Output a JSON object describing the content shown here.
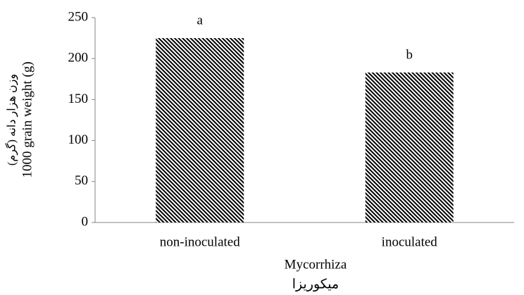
{
  "chart_data": {
    "type": "bar",
    "categories": [
      "non-inoculated",
      "inoculated"
    ],
    "values": [
      225,
      183
    ],
    "value_labels": [
      "a",
      "b"
    ],
    "x_label": "Mycorrhiza",
    "x_label_secondary": "میکوریزا",
    "y_label": "1000 grain weight (g)",
    "y_label_secondary": "وزن هزار دانه (گرم)",
    "ylim": [
      0,
      250
    ],
    "yticks": [
      0,
      50,
      100,
      150,
      200,
      250
    ],
    "grid": false,
    "pattern": "diagonal-stripes",
    "color": "#000000"
  }
}
